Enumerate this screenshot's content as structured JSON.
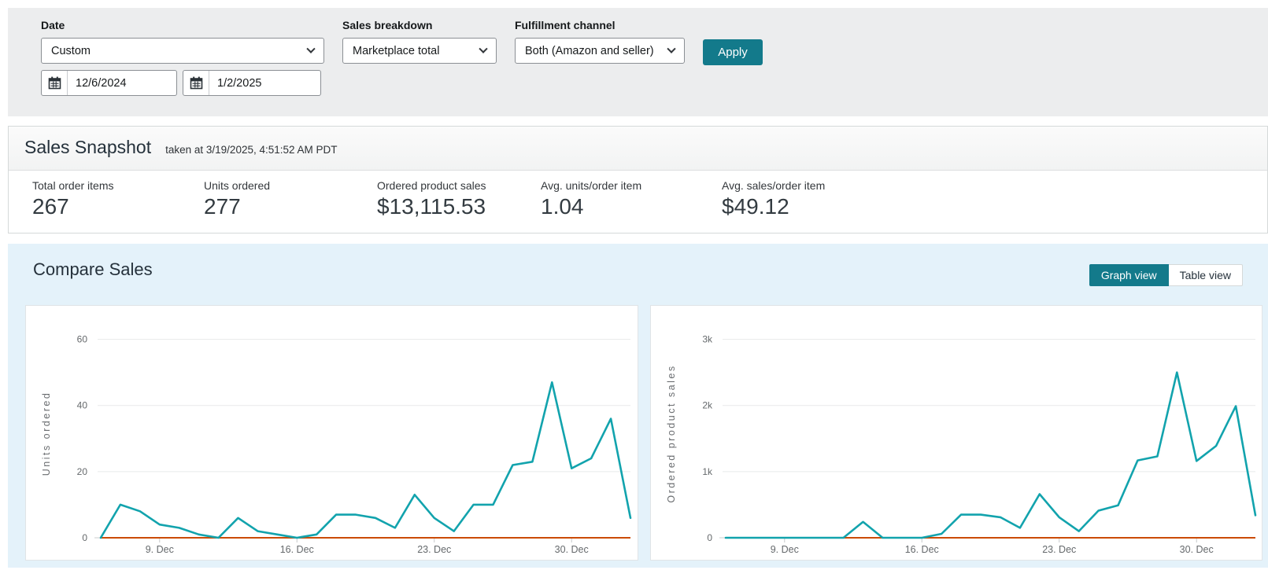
{
  "filters": {
    "date": {
      "label": "Date",
      "value": "Custom",
      "start_value": "12/6/2024",
      "end_value": "1/2/2025"
    },
    "sales_breakdown": {
      "label": "Sales breakdown",
      "value": "Marketplace total"
    },
    "fulfillment_channel": {
      "label": "Fulfillment channel",
      "value": "Both (Amazon and seller)"
    },
    "apply_label": "Apply"
  },
  "snapshot": {
    "title": "Sales Snapshot",
    "taken_at": "taken at 3/19/2025, 4:51:52 AM PDT",
    "metrics": [
      {
        "label": "Total order items",
        "value": "267"
      },
      {
        "label": "Units ordered",
        "value": "277"
      },
      {
        "label": "Ordered product sales",
        "value": "$13,115.53"
      },
      {
        "label": "Avg. units/order item",
        "value": "1.04"
      },
      {
        "label": "Avg. sales/order item",
        "value": "$49.12"
      }
    ]
  },
  "compare": {
    "title": "Compare Sales",
    "graph_view_label": "Graph view",
    "table_view_label": "Table view"
  },
  "colors": {
    "accent_teal": "#137a8b",
    "chart_line": "#12a3ad",
    "chart_baseline": "#cb4b01",
    "gridline": "#e8e9ea",
    "axis_line": "#d5d7d8",
    "tick_text": "#65696c",
    "section_bg": "#e4f2fa",
    "filter_bg": "#ecedee"
  },
  "chart_data": [
    {
      "type": "line",
      "name": "units-ordered",
      "ylabel": "Units ordered",
      "x": [
        "12/6",
        "12/7",
        "12/8",
        "12/9",
        "12/10",
        "12/11",
        "12/12",
        "12/13",
        "12/14",
        "12/15",
        "12/16",
        "12/17",
        "12/18",
        "12/19",
        "12/20",
        "12/21",
        "12/22",
        "12/23",
        "12/24",
        "12/25",
        "12/26",
        "12/27",
        "12/28",
        "12/29",
        "12/30",
        "12/31",
        "1/1",
        "1/2"
      ],
      "xticks": {
        "indices": [
          3,
          10,
          17,
          24
        ],
        "labels": [
          "9. Dec",
          "16. Dec",
          "23. Dec",
          "30. Dec"
        ]
      },
      "yticks": {
        "values": [
          0,
          20,
          40,
          60
        ],
        "labels": [
          "0",
          "20",
          "40",
          "60"
        ]
      },
      "ylim": [
        0,
        63
      ],
      "grid": true,
      "legend": "none",
      "series": [
        {
          "name": "Units ordered",
          "values": [
            0,
            10,
            8,
            4,
            3,
            1,
            0,
            6,
            2,
            1,
            0,
            1,
            7,
            7,
            6,
            3,
            13,
            6,
            2,
            10,
            10,
            22,
            23,
            47,
            21,
            24,
            36,
            6
          ]
        },
        {
          "name": "zero baseline",
          "values": [
            0,
            0,
            0,
            0,
            0,
            0,
            0,
            0,
            0,
            0,
            0,
            0,
            0,
            0,
            0,
            0,
            0,
            0,
            0,
            0,
            0,
            0,
            0,
            0,
            0,
            0,
            0,
            0
          ]
        }
      ]
    },
    {
      "type": "line",
      "name": "ordered-product-sales",
      "ylabel": "Ordered product sales",
      "x": [
        "12/6",
        "12/7",
        "12/8",
        "12/9",
        "12/10",
        "12/11",
        "12/12",
        "12/13",
        "12/14",
        "12/15",
        "12/16",
        "12/17",
        "12/18",
        "12/19",
        "12/20",
        "12/21",
        "12/22",
        "12/23",
        "12/24",
        "12/25",
        "12/26",
        "12/27",
        "12/28",
        "12/29",
        "12/30",
        "12/31",
        "1/1",
        "1/2"
      ],
      "xticks": {
        "indices": [
          3,
          10,
          17,
          24
        ],
        "labels": [
          "9. Dec",
          "16. Dec",
          "23. Dec",
          "30. Dec"
        ]
      },
      "yticks": {
        "values": [
          0,
          1000,
          2000,
          3000
        ],
        "labels": [
          "0",
          "1k",
          "2k",
          "3k"
        ]
      },
      "ylim": [
        0,
        3150
      ],
      "grid": true,
      "legend": "none",
      "series": [
        {
          "name": "Ordered product sales",
          "values": [
            0,
            0,
            0,
            0,
            0,
            0,
            0,
            240,
            0,
            0,
            0,
            60,
            350,
            350,
            310,
            150,
            660,
            310,
            100,
            410,
            490,
            1170,
            1230,
            2500,
            1160,
            1390,
            1990,
            340
          ]
        },
        {
          "name": "zero baseline",
          "values": [
            0,
            0,
            0,
            0,
            0,
            0,
            0,
            0,
            0,
            0,
            0,
            0,
            0,
            0,
            0,
            0,
            0,
            0,
            0,
            0,
            0,
            0,
            0,
            0,
            0,
            0,
            0,
            0
          ]
        }
      ]
    }
  ]
}
